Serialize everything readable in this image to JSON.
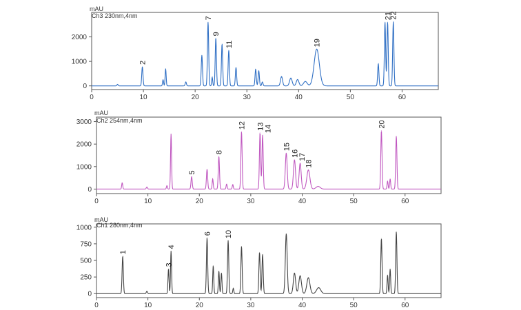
{
  "chart_data": [
    {
      "type": "line",
      "unit_label": "mAU",
      "channel_label": "Ch3 230nm,4nm",
      "color": "#2f6fc4",
      "xlim": [
        0,
        67
      ],
      "ylim": [
        -150,
        3000
      ],
      "xticks": [
        "0",
        "10",
        "20",
        "30",
        "40",
        "50",
        "60"
      ],
      "yticks": [
        "0",
        "1000",
        "2000"
      ],
      "ytick_values": [
        0,
        1000,
        2000
      ],
      "peaks": [
        {
          "rt": 5.0,
          "h": 60,
          "w": 0.12
        },
        {
          "rt": 9.8,
          "h": 780,
          "w": 0.12
        },
        {
          "rt": 13.8,
          "h": 250,
          "w": 0.1
        },
        {
          "rt": 14.3,
          "h": 700,
          "w": 0.1
        },
        {
          "rt": 18.2,
          "h": 160,
          "w": 0.12
        },
        {
          "rt": 21.3,
          "h": 1250,
          "w": 0.12
        },
        {
          "rt": 22.5,
          "h": 2600,
          "w": 0.12
        },
        {
          "rt": 23.3,
          "h": 350,
          "w": 0.1
        },
        {
          "rt": 24.0,
          "h": 1950,
          "w": 0.12
        },
        {
          "rt": 25.2,
          "h": 1700,
          "w": 0.12
        },
        {
          "rt": 26.5,
          "h": 1450,
          "w": 0.12
        },
        {
          "rt": 27.9,
          "h": 750,
          "w": 0.12
        },
        {
          "rt": 31.7,
          "h": 680,
          "w": 0.12
        },
        {
          "rt": 32.3,
          "h": 620,
          "w": 0.12
        },
        {
          "rt": 33.0,
          "h": 160,
          "w": 0.12
        },
        {
          "rt": 36.7,
          "h": 380,
          "w": 0.2
        },
        {
          "rt": 38.5,
          "h": 320,
          "w": 0.25
        },
        {
          "rt": 39.8,
          "h": 260,
          "w": 0.25
        },
        {
          "rt": 41.3,
          "h": 180,
          "w": 0.35
        },
        {
          "rt": 43.5,
          "h": 1500,
          "w": 0.5
        },
        {
          "rt": 55.4,
          "h": 900,
          "w": 0.12
        },
        {
          "rt": 56.7,
          "h": 2600,
          "w": 0.12
        },
        {
          "rt": 57.2,
          "h": 2600,
          "w": 0.12
        },
        {
          "rt": 58.3,
          "h": 2620,
          "w": 0.12
        }
      ],
      "labels": [
        {
          "text": "2",
          "rt": 9.8,
          "y": 780
        },
        {
          "text": "7",
          "rt": 22.5,
          "y": 2600
        },
        {
          "text": "9",
          "rt": 24.0,
          "y": 1950
        },
        {
          "text": "11",
          "rt": 26.5,
          "y": 1450
        },
        {
          "text": "19",
          "rt": 43.5,
          "y": 1500
        },
        {
          "text": "21",
          "rt": 57.2,
          "y": 2600
        },
        {
          "text": "22",
          "rt": 58.3,
          "y": 2620
        }
      ]
    },
    {
      "type": "line",
      "unit_label": "mAU",
      "channel_label": "Ch2 254nm,4nm",
      "color": "#c058c0",
      "xlim": [
        0,
        67
      ],
      "ylim": [
        -200,
        3200
      ],
      "xticks": [
        "0",
        "10",
        "20",
        "30",
        "40",
        "50",
        "60"
      ],
      "yticks": [
        "0",
        "1000",
        "2000",
        "3000"
      ],
      "ytick_values": [
        0,
        1000,
        2000,
        3000
      ],
      "peaks": [
        {
          "rt": 5.0,
          "h": 280,
          "w": 0.1
        },
        {
          "rt": 9.8,
          "h": 90,
          "w": 0.12
        },
        {
          "rt": 13.7,
          "h": 150,
          "w": 0.1
        },
        {
          "rt": 14.5,
          "h": 2450,
          "w": 0.1
        },
        {
          "rt": 18.5,
          "h": 550,
          "w": 0.12
        },
        {
          "rt": 21.5,
          "h": 880,
          "w": 0.12
        },
        {
          "rt": 22.6,
          "h": 450,
          "w": 0.1
        },
        {
          "rt": 23.8,
          "h": 1450,
          "w": 0.12
        },
        {
          "rt": 25.3,
          "h": 220,
          "w": 0.1
        },
        {
          "rt": 26.5,
          "h": 200,
          "w": 0.1
        },
        {
          "rt": 28.2,
          "h": 2550,
          "w": 0.12
        },
        {
          "rt": 31.8,
          "h": 2500,
          "w": 0.12
        },
        {
          "rt": 32.3,
          "h": 2400,
          "w": 0.12
        },
        {
          "rt": 36.9,
          "h": 1600,
          "w": 0.18
        },
        {
          "rt": 38.5,
          "h": 1300,
          "w": 0.2
        },
        {
          "rt": 39.6,
          "h": 1150,
          "w": 0.2
        },
        {
          "rt": 41.2,
          "h": 850,
          "w": 0.3
        },
        {
          "rt": 43.1,
          "h": 120,
          "w": 0.4
        },
        {
          "rt": 55.4,
          "h": 2600,
          "w": 0.12
        },
        {
          "rt": 56.6,
          "h": 350,
          "w": 0.1
        },
        {
          "rt": 57.1,
          "h": 450,
          "w": 0.1
        },
        {
          "rt": 58.3,
          "h": 2350,
          "w": 0.12
        }
      ],
      "labels": [
        {
          "text": "5",
          "rt": 18.5,
          "y": 550
        },
        {
          "text": "8",
          "rt": 23.8,
          "y": 1450
        },
        {
          "text": "12",
          "rt": 28.2,
          "y": 2550
        },
        {
          "text": "13",
          "rt": 31.8,
          "y": 2500
        },
        {
          "text": "14",
          "rt": 33.3,
          "y": 2400
        },
        {
          "text": "15",
          "rt": 36.9,
          "y": 1600
        },
        {
          "text": "16",
          "rt": 38.5,
          "y": 1300
        },
        {
          "text": "17",
          "rt": 39.9,
          "y": 1150
        },
        {
          "text": "18",
          "rt": 41.2,
          "y": 850
        },
        {
          "text": "20",
          "rt": 55.4,
          "y": 2600
        }
      ]
    },
    {
      "type": "line",
      "unit_label": "mAU",
      "channel_label": "Ch1 280nm,4nm",
      "color": "#444444",
      "xlim": [
        0,
        67
      ],
      "ylim": [
        -60,
        1050
      ],
      "xticks": [
        "0",
        "10",
        "20",
        "30",
        "40",
        "50",
        "60"
      ],
      "yticks": [
        "0",
        "250",
        "500",
        "750",
        "1000"
      ],
      "ytick_values": [
        0,
        250,
        500,
        750,
        1000
      ],
      "peaks": [
        {
          "rt": 5.1,
          "h": 560,
          "w": 0.12
        },
        {
          "rt": 9.8,
          "h": 35,
          "w": 0.12
        },
        {
          "rt": 14.0,
          "h": 370,
          "w": 0.1
        },
        {
          "rt": 14.5,
          "h": 640,
          "w": 0.1
        },
        {
          "rt": 21.5,
          "h": 840,
          "w": 0.12
        },
        {
          "rt": 22.7,
          "h": 420,
          "w": 0.1
        },
        {
          "rt": 23.8,
          "h": 340,
          "w": 0.1
        },
        {
          "rt": 24.3,
          "h": 310,
          "w": 0.1
        },
        {
          "rt": 25.6,
          "h": 800,
          "w": 0.12
        },
        {
          "rt": 26.6,
          "h": 80,
          "w": 0.1
        },
        {
          "rt": 28.2,
          "h": 710,
          "w": 0.12
        },
        {
          "rt": 31.7,
          "h": 620,
          "w": 0.12
        },
        {
          "rt": 32.3,
          "h": 590,
          "w": 0.12
        },
        {
          "rt": 36.9,
          "h": 900,
          "w": 0.18
        },
        {
          "rt": 38.5,
          "h": 310,
          "w": 0.22
        },
        {
          "rt": 39.6,
          "h": 270,
          "w": 0.25
        },
        {
          "rt": 41.2,
          "h": 240,
          "w": 0.3
        },
        {
          "rt": 43.2,
          "h": 90,
          "w": 0.4
        },
        {
          "rt": 55.4,
          "h": 830,
          "w": 0.12
        },
        {
          "rt": 56.6,
          "h": 280,
          "w": 0.1
        },
        {
          "rt": 57.1,
          "h": 370,
          "w": 0.1
        },
        {
          "rt": 58.3,
          "h": 930,
          "w": 0.12
        }
      ],
      "labels": [
        {
          "text": "1",
          "rt": 5.1,
          "y": 560
        },
        {
          "text": "3",
          "rt": 14.0,
          "y": 370
        },
        {
          "text": "4",
          "rt": 14.5,
          "y": 640
        },
        {
          "text": "6",
          "rt": 21.5,
          "y": 840
        },
        {
          "text": "10",
          "rt": 25.6,
          "y": 800
        }
      ]
    }
  ]
}
